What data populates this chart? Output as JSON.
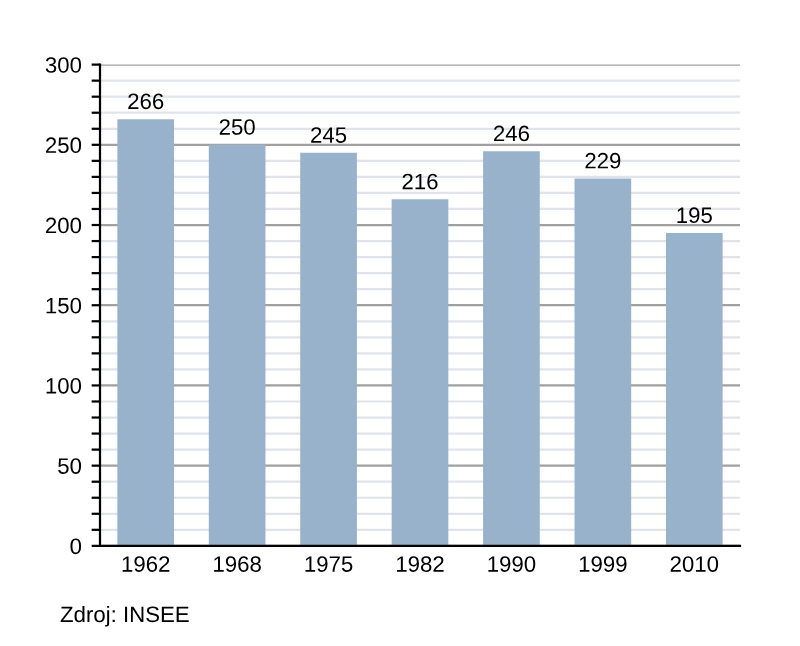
{
  "chart_data": {
    "type": "bar",
    "categories": [
      "1962",
      "1968",
      "1975",
      "1982",
      "1990",
      "1999",
      "2010"
    ],
    "values": [
      266,
      250,
      245,
      216,
      246,
      229,
      195
    ],
    "color": "#98b2cc",
    "data_labels": true,
    "ylim": [
      0,
      300
    ],
    "yticks": [
      0,
      {
        "value": 10,
        "label": null
      },
      {
        "value": 20,
        "label": null
      },
      {
        "value": 30,
        "label": null
      },
      {
        "value": 40,
        "label": null
      },
      50,
      {
        "value": 60,
        "label": null
      },
      {
        "value": 70,
        "label": null
      },
      {
        "value": 80,
        "label": null
      },
      {
        "value": 90,
        "label": null
      },
      100,
      {
        "value": 110,
        "label": null
      },
      {
        "value": 120,
        "label": null
      },
      {
        "value": 130,
        "label": null
      },
      {
        "value": 140,
        "label": null
      },
      150,
      {
        "value": 160,
        "label": null
      },
      {
        "value": 170,
        "label": null
      },
      {
        "value": 180,
        "label": null
      },
      {
        "value": 190,
        "label": null
      },
      200,
      {
        "value": 210,
        "label": null
      },
      {
        "value": 220,
        "label": null
      },
      {
        "value": 230,
        "label": null
      },
      {
        "value": 240,
        "label": null
      },
      250,
      {
        "value": 260,
        "label": null
      },
      {
        "value": 270,
        "label": null
      },
      {
        "value": 280,
        "label": null
      },
      {
        "value": 290,
        "label": null
      },
      300
    ],
    "grid": "y",
    "legend": false,
    "annotations": [
      "Zdroj: INSEE"
    ]
  }
}
